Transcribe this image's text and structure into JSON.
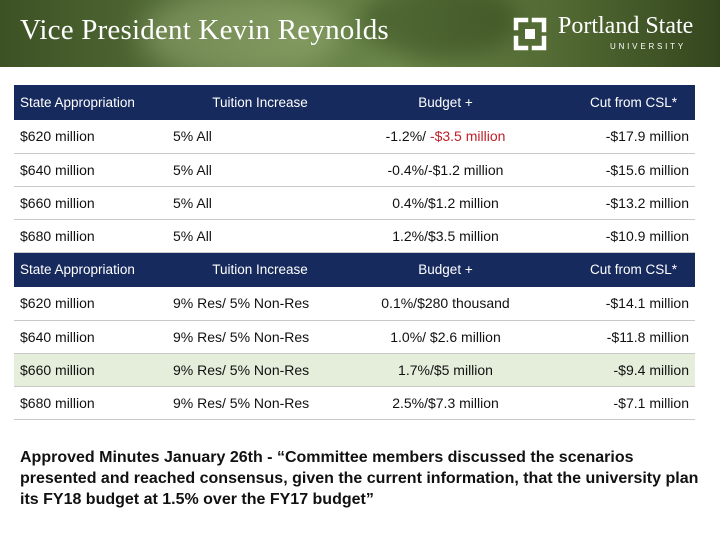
{
  "header": {
    "title": "Vice President Kevin Reynolds",
    "logo_name": "Portland State",
    "logo_sub": "UNIVERSITY"
  },
  "columns": [
    "State Appropriation",
    "Tuition Increase",
    "Budget +",
    "Cut from CSL*"
  ],
  "section1": [
    {
      "appropriation": "$620 million",
      "tuition": "5% All",
      "budget_pre": "-1.2%/ ",
      "budget_neg": "-$3.5 million",
      "cut": "-$17.9 million"
    },
    {
      "appropriation": "$640 million",
      "tuition": "5% All",
      "budget_pre": "-0.4%/",
      "budget_neg": "-$1.2 million",
      "cut": "-$15.6 million"
    },
    {
      "appropriation": "$660 million",
      "tuition": "5% All",
      "budget": "0.4%/$1.2 million",
      "cut": "-$13.2 million"
    },
    {
      "appropriation": "$680 million",
      "tuition": "5% All",
      "budget": "1.2%/$3.5 million",
      "cut": "-$10.9 million"
    }
  ],
  "section2": [
    {
      "appropriation": "$620 million",
      "tuition": "9% Res/ 5% Non-Res",
      "budget": "0.1%/$280 thousand",
      "cut": "-$14.1 million"
    },
    {
      "appropriation": "$640 million",
      "tuition": "9% Res/ 5% Non-Res",
      "budget": "1.0%/ $2.6 million",
      "cut": "-$11.8 million"
    },
    {
      "appropriation": "$660 million",
      "tuition": "9% Res/ 5% Non-Res",
      "budget": "1.7%/$5 million",
      "cut": "-$9.4 million"
    },
    {
      "appropriation": "$680 million",
      "tuition": "9% Res/ 5% Non-Res",
      "budget": "2.5%/$7.3 million",
      "cut": "-$7.1 million"
    }
  ],
  "minutes": "Approved Minutes  January 26th - “Committee members discussed the scenarios presented and reached consensus, given the current information, that the university plan its FY18 budget at 1.5% over the FY17 budget”"
}
